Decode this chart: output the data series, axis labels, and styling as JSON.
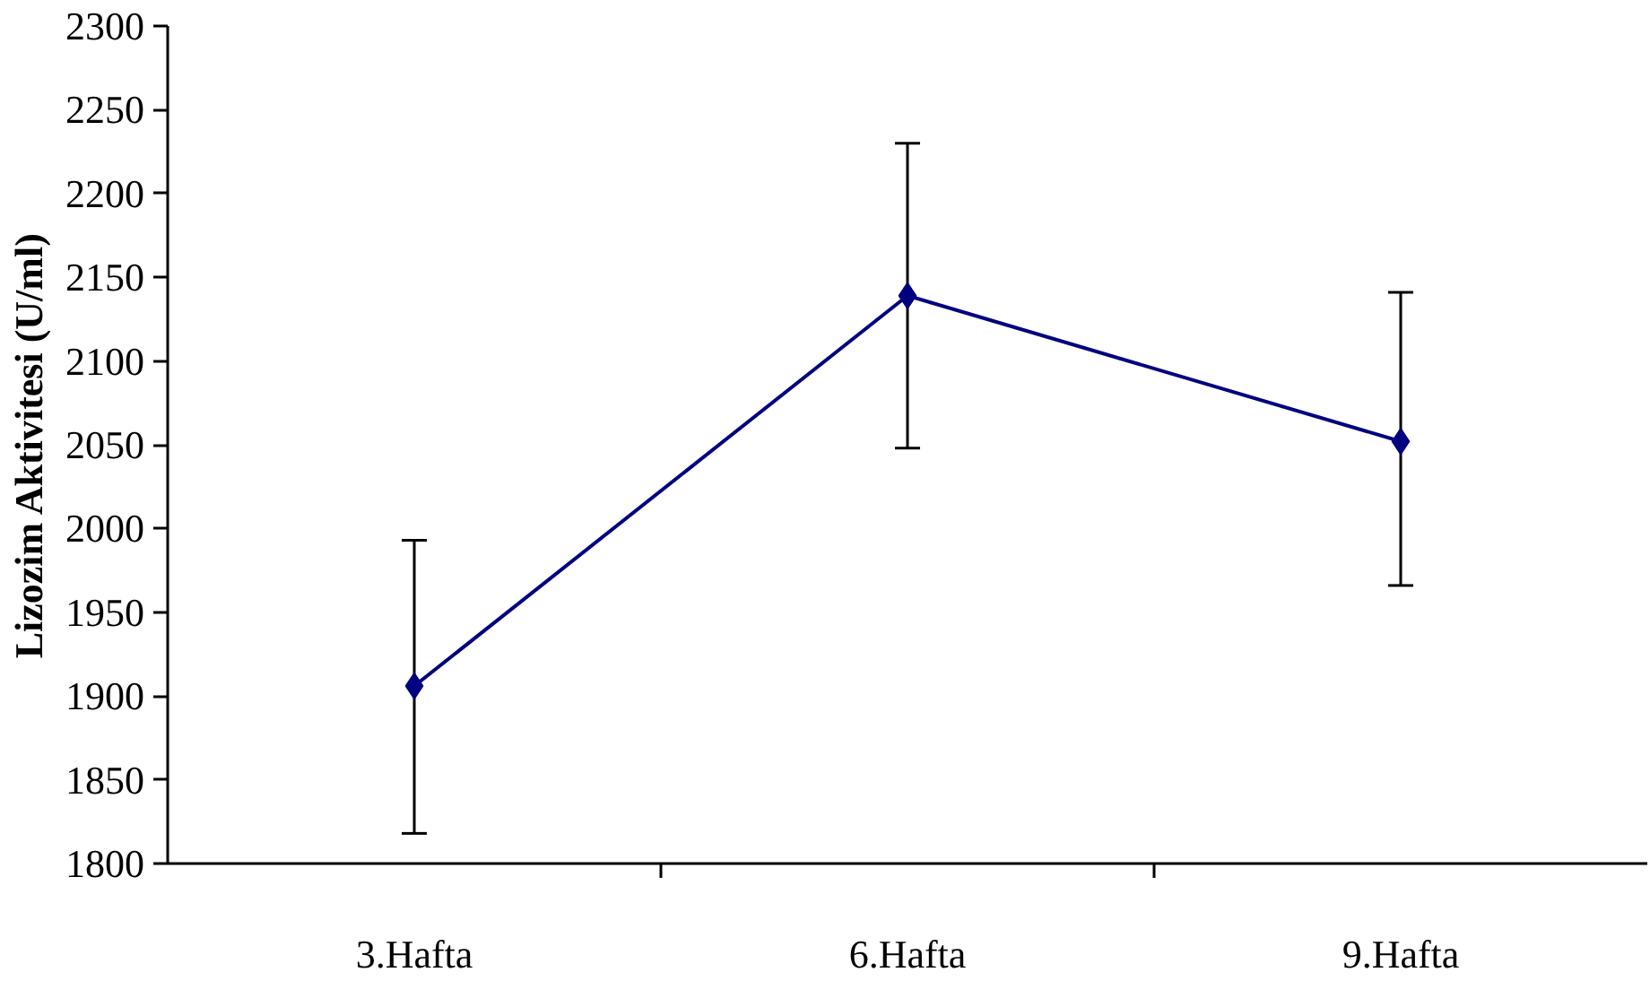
{
  "chart_data": {
    "type": "line",
    "ylabel": "Lizozim Aktivitesi (U/ml)",
    "categories": [
      "3.Hafta",
      "6.Hafta",
      "9.Hafta"
    ],
    "series": [
      {
        "color": "#000080",
        "values": [
          1906,
          2139,
          2052
        ],
        "errors": [
          [
            1818,
            1993
          ],
          [
            2048,
            2230
          ],
          [
            1966,
            2141
          ]
        ]
      }
    ],
    "ylim": [
      1800,
      2300
    ],
    "yticks": [
      1800,
      1850,
      1900,
      1950,
      2000,
      2050,
      2100,
      2150,
      2200,
      2250,
      2300
    ],
    "grid": false,
    "marker": "diamond",
    "line_style": "solid"
  }
}
